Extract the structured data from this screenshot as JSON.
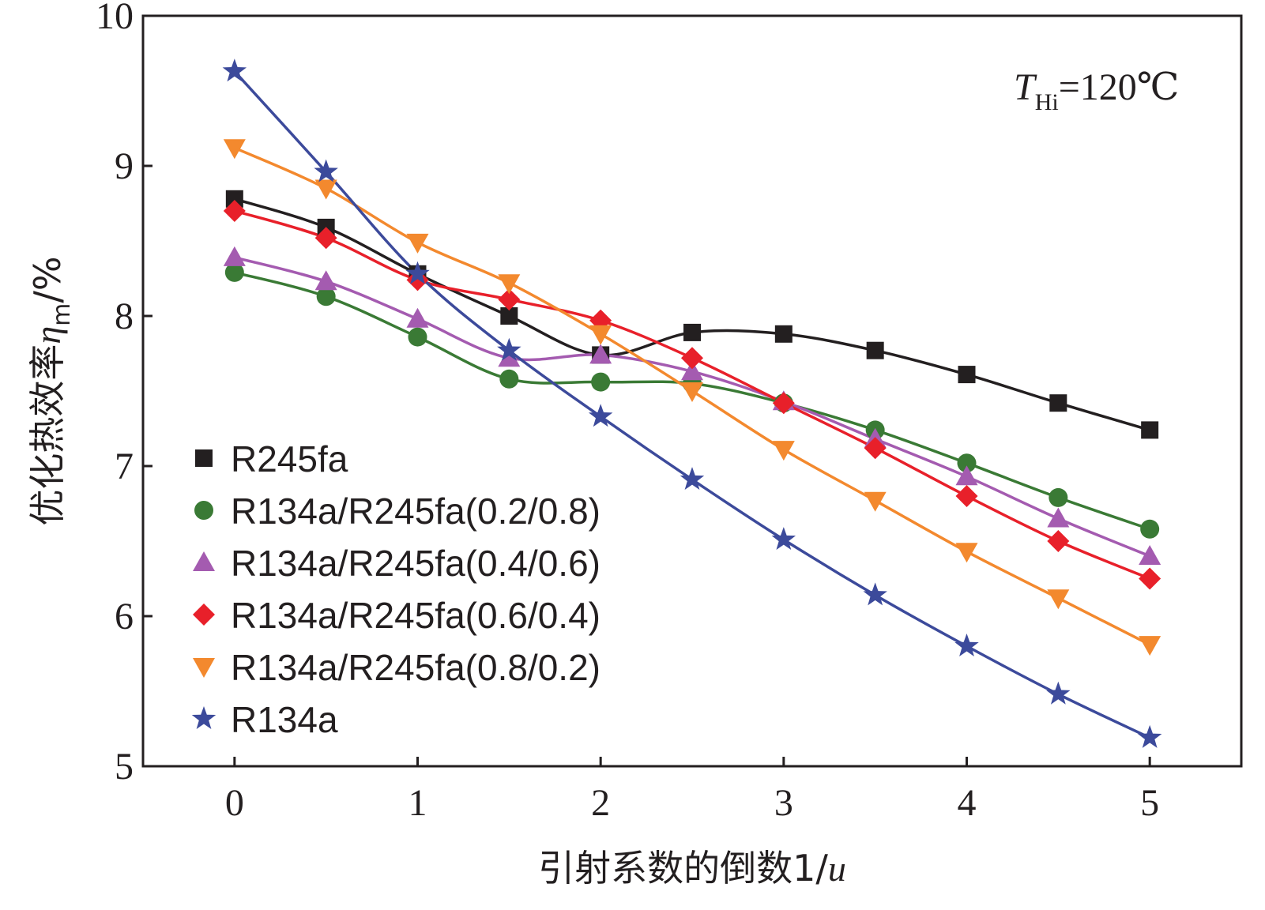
{
  "chart_data": {
    "type": "line",
    "title": "",
    "xlabel": "引射系数的倒数1/u",
    "ylabel": "优化热效率η_m/%",
    "xlabel_parts": {
      "text": "引射系数的倒数1/",
      "var": "u"
    },
    "ylabel_parts": {
      "text": "优化热效率",
      "symbol": "η",
      "sub": "m",
      "unit": "/%"
    },
    "annotation": {
      "var": "T",
      "sub": "Hi",
      "rest": "=120℃"
    },
    "xlim": [
      -0.5,
      5.5
    ],
    "ylim": [
      5,
      10
    ],
    "xticks": [
      0,
      1,
      2,
      3,
      4,
      5
    ],
    "yticks": [
      5,
      6,
      7,
      8,
      9,
      10
    ],
    "x": [
      0,
      0.5,
      1,
      1.5,
      2,
      2.5,
      3,
      3.5,
      4,
      4.5,
      5
    ],
    "legend_position": "center-left",
    "series": [
      {
        "name": "R245fa",
        "marker": "square",
        "color": "#231f20",
        "values": [
          8.78,
          8.59,
          8.28,
          8.0,
          7.74,
          7.89,
          7.88,
          7.77,
          7.61,
          7.42,
          7.24
        ]
      },
      {
        "name": "R134a/R245fa(0.2/0.8)",
        "marker": "circle",
        "color": "#3a7a35",
        "values": [
          8.29,
          8.13,
          7.86,
          7.58,
          7.56,
          7.55,
          7.42,
          7.24,
          7.02,
          6.79,
          6.58
        ]
      },
      {
        "name": "R134a/R245fa(0.4/0.6)",
        "marker": "triangle-up",
        "color": "#a45bb0",
        "values": [
          8.39,
          8.23,
          7.98,
          7.72,
          7.74,
          7.63,
          7.43,
          7.18,
          6.93,
          6.65,
          6.4
        ]
      },
      {
        "name": "R134a/R245fa(0.6/0.4)",
        "marker": "diamond",
        "color": "#e8202a",
        "values": [
          8.7,
          8.52,
          8.24,
          8.11,
          7.97,
          7.72,
          7.42,
          7.12,
          6.8,
          6.5,
          6.25
        ]
      },
      {
        "name": "R134a/R245fa(0.8/0.2)",
        "marker": "triangle-down",
        "color": "#f3892e",
        "values": [
          9.12,
          8.85,
          8.49,
          8.22,
          7.88,
          7.5,
          7.11,
          6.77,
          6.43,
          6.12,
          5.81
        ]
      },
      {
        "name": "R134a",
        "marker": "star",
        "color": "#3c4a9b",
        "values": [
          9.63,
          8.96,
          8.28,
          7.77,
          7.33,
          6.91,
          6.51,
          6.14,
          5.8,
          5.48,
          5.19
        ]
      }
    ]
  }
}
